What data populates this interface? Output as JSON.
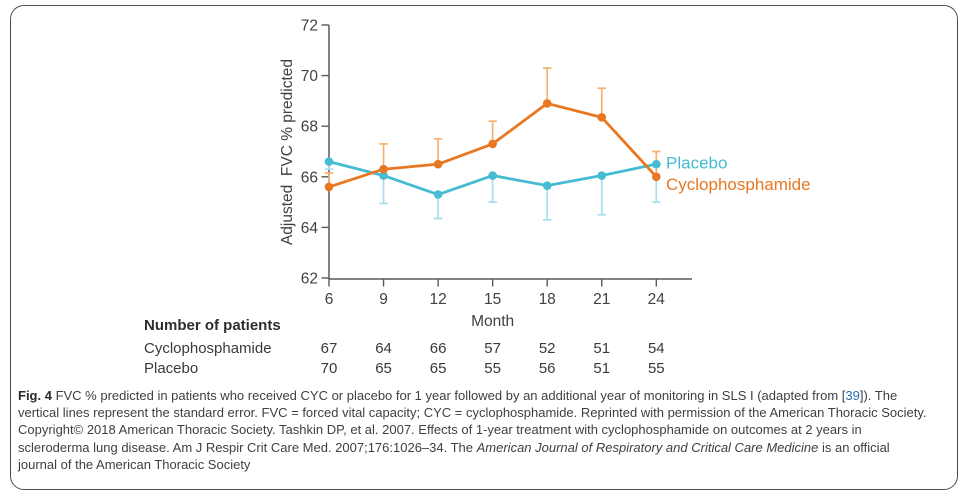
{
  "figure": {
    "border_color": "#4d4d4f"
  },
  "chart_data": {
    "type": "line",
    "title": "",
    "xlabel": "Month",
    "ylabel": "Adjusted  FVC % predicted",
    "x": [
      6,
      9,
      12,
      15,
      18,
      21,
      24
    ],
    "xlim": [
      6,
      24
    ],
    "ylim": [
      62,
      72
    ],
    "yticks": [
      62,
      64,
      66,
      68,
      70,
      72
    ],
    "grid": false,
    "legend_position": "right-of-last-point",
    "error_note": "vertical lines are standard error, caps shown",
    "series": [
      {
        "name": "Placebo",
        "color": "#45bcd2",
        "error_color": "#a5dfeb",
        "error_direction": "down",
        "values": [
          66.6,
          66.05,
          65.3,
          66.05,
          65.65,
          66.05,
          66.5
        ],
        "errors": [
          0.3,
          1.1,
          0.95,
          1.05,
          1.35,
          1.55,
          1.5
        ]
      },
      {
        "name": "Cyclophosphamide",
        "color": "#e87722",
        "error_color": "#f6b171",
        "error_direction": "up",
        "values": [
          65.6,
          66.3,
          66.5,
          67.3,
          68.9,
          68.35,
          66.0
        ],
        "errors": [
          0.55,
          1.0,
          1.0,
          0.9,
          1.4,
          1.15,
          1.0
        ]
      }
    ],
    "axis_color": "#58595b",
    "tick_text_color": "#414042"
  },
  "patients_table": {
    "header": "Number of patients",
    "rows": [
      {
        "label": "Cyclophosphamide",
        "values": [
          67,
          64,
          66,
          57,
          52,
          51,
          54
        ]
      },
      {
        "label": "Placebo",
        "values": [
          70,
          65,
          65,
          55,
          56,
          51,
          55
        ]
      }
    ]
  },
  "caption": {
    "link_color": "#2b6cb0",
    "segments": [
      {
        "style": "bold",
        "text": "Fig. 4"
      },
      {
        "style": "normal",
        "text": " FVC % predicted in patients who received CYC or placebo for 1 year followed by an additional year of monitoring in SLS I (adapted from ["
      },
      {
        "style": "link",
        "text": "39"
      },
      {
        "style": "normal",
        "text": "]). The vertical lines represent the standard error. FVC = forced vital capacity; CYC = cyclophosphamide. Reprinted with permission of the American Thoracic Society. Copyright© 2018 American Thoracic Society. Tashkin DP, et al. 2007. Effects of 1-year treatment with cyclophosphamide on outcomes at 2 years in scleroderma lung disease. Am J Respir Crit Care Med. 2007;176:1026–34. The "
      },
      {
        "style": "italic",
        "text": "American Journal of Respiratory and Critical Care Medicine"
      },
      {
        "style": "normal",
        "text": " is an official journal of the American Thoracic Society"
      }
    ]
  }
}
